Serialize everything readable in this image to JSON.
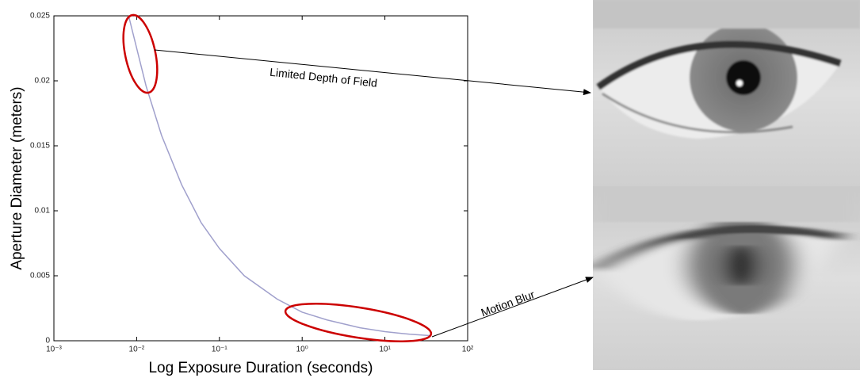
{
  "chart_data": {
    "type": "line",
    "xlabel": "Log Exposure Duration (seconds)",
    "ylabel": "Aperture Diameter (meters)",
    "x": [
      0.008,
      0.013,
      0.02,
      0.035,
      0.06,
      0.1,
      0.2,
      0.5,
      1,
      2,
      5,
      10,
      20,
      35
    ],
    "series": [
      {
        "color": "#a0a0cc",
        "values": [
          0.025,
          0.0196,
          0.0158,
          0.012,
          0.0091,
          0.0071,
          0.005,
          0.0032,
          0.0022,
          0.0016,
          0.001,
          0.0007,
          0.0005,
          0.0004
        ]
      }
    ],
    "xscale": "log",
    "xlim": [
      0.001,
      100
    ],
    "xticks": [
      {
        "value": 0.001,
        "label": "10⁻³"
      },
      {
        "value": 0.01,
        "label": "10⁻²"
      },
      {
        "value": 0.1,
        "label": "10⁻¹"
      },
      {
        "value": 1,
        "label": "10⁰"
      },
      {
        "value": 10,
        "label": "10¹"
      },
      {
        "value": 100,
        "label": "10²"
      }
    ],
    "ylim": [
      0,
      0.025
    ],
    "yticks": [
      0,
      0.005,
      0.01,
      0.015,
      0.02,
      0.025
    ],
    "annotations": [
      "Limited Depth of Field",
      "Motion Blur"
    ]
  }
}
